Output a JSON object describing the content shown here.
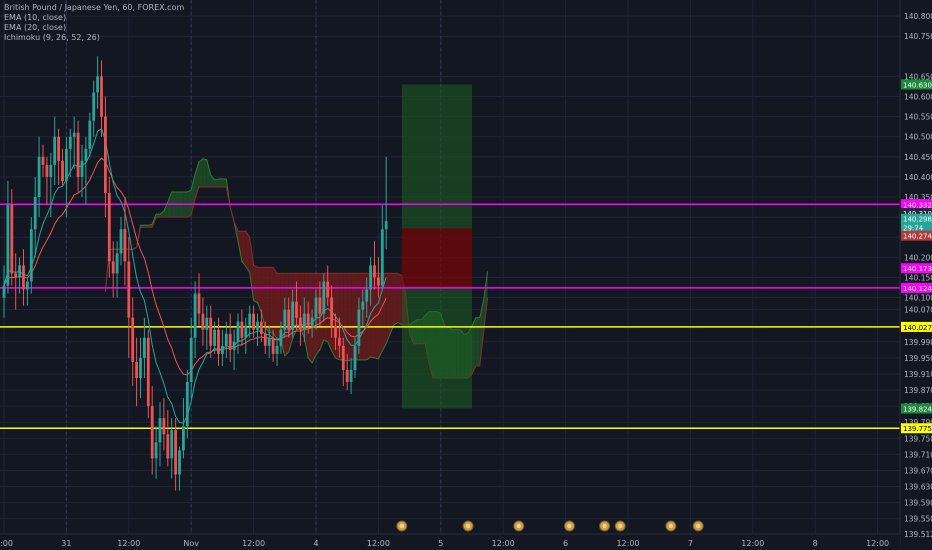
{
  "legend": {
    "symbol": "British Pound / Japanese Yen, 60, FOREX.com",
    "ema10": "EMA (10, close)",
    "ema20": "EMA (20, close)",
    "ichimoku": "Ichimoku (9, 26, 52, 26)"
  },
  "chart_data": {
    "type": "candlestick",
    "title": "British Pound / Japanese Yen, 60, FOREX.com",
    "ylim": [
      139.512,
      140.84
    ],
    "y_ticks": [
      140.8,
      140.75,
      140.65,
      140.6,
      140.55,
      140.5,
      140.45,
      140.4,
      140.35,
      140.3,
      140.25,
      140.2,
      140.15,
      140.1,
      140.07,
      139.99,
      139.95,
      139.91,
      139.87,
      139.83,
      139.79,
      139.75,
      139.71,
      139.67,
      139.63,
      139.59,
      139.55,
      139.512
    ],
    "x_ticks": [
      "2:00",
      "31",
      "12:00",
      "Nov",
      "12:00",
      "4",
      "12:00",
      "5",
      "12:00",
      "6",
      "12:00",
      "7",
      "12:00",
      "8",
      "12:00"
    ],
    "x_tick_index": [
      0,
      16,
      32,
      48,
      64,
      80,
      96,
      112,
      128,
      144,
      160,
      176,
      192,
      208,
      224
    ],
    "candles": [
      [
        140.1,
        140.18,
        140.05,
        140.13
      ],
      [
        140.13,
        140.39,
        140.11,
        140.33
      ],
      [
        140.33,
        140.37,
        140.13,
        140.16
      ],
      [
        140.16,
        140.21,
        140.07,
        140.15
      ],
      [
        140.15,
        140.2,
        140.11,
        140.18
      ],
      [
        140.18,
        140.22,
        140.08,
        140.12
      ],
      [
        140.12,
        140.15,
        140.08,
        140.14
      ],
      [
        140.14,
        140.3,
        140.11,
        140.27
      ],
      [
        140.27,
        140.4,
        140.2,
        140.35
      ],
      [
        140.35,
        140.5,
        140.3,
        140.45
      ],
      [
        140.45,
        140.48,
        140.4,
        140.43
      ],
      [
        140.43,
        140.45,
        140.33,
        140.4
      ],
      [
        140.4,
        140.46,
        140.3,
        140.43
      ],
      [
        140.43,
        140.55,
        140.38,
        140.5
      ],
      [
        140.5,
        140.52,
        140.38,
        140.44
      ],
      [
        140.44,
        140.47,
        140.38,
        140.39
      ],
      [
        140.39,
        140.5,
        140.3,
        140.47
      ],
      [
        140.47,
        140.52,
        140.4,
        140.5
      ],
      [
        140.5,
        140.55,
        140.42,
        140.51
      ],
      [
        140.51,
        140.54,
        140.36,
        140.4
      ],
      [
        140.4,
        140.48,
        140.35,
        140.44
      ],
      [
        140.44,
        140.5,
        140.33,
        140.47
      ],
      [
        140.47,
        140.56,
        140.45,
        140.54
      ],
      [
        140.54,
        140.64,
        140.5,
        140.61
      ],
      [
        140.61,
        140.7,
        140.57,
        140.65
      ],
      [
        140.65,
        140.69,
        140.5,
        140.55
      ],
      [
        140.55,
        140.6,
        140.3,
        140.36
      ],
      [
        140.36,
        140.4,
        140.15,
        140.19
      ],
      [
        140.19,
        140.24,
        140.1,
        140.16
      ],
      [
        140.16,
        140.24,
        140.1,
        140.21
      ],
      [
        140.21,
        140.3,
        140.18,
        140.27
      ],
      [
        140.27,
        140.35,
        140.13,
        140.19
      ],
      [
        140.19,
        140.25,
        139.95,
        140.05
      ],
      [
        140.05,
        140.1,
        139.88,
        139.94
      ],
      [
        139.94,
        140.0,
        139.83,
        139.9
      ],
      [
        139.9,
        140.0,
        139.85,
        139.95
      ],
      [
        139.95,
        140.05,
        139.9,
        140.0
      ],
      [
        140.0,
        140.02,
        139.8,
        139.83
      ],
      [
        139.83,
        139.88,
        139.66,
        139.7
      ],
      [
        139.7,
        139.78,
        139.65,
        139.74
      ],
      [
        139.74,
        139.84,
        139.68,
        139.8
      ],
      [
        139.8,
        139.85,
        139.72,
        139.76
      ],
      [
        139.76,
        139.82,
        139.68,
        139.7
      ],
      [
        139.7,
        139.8,
        139.65,
        139.77
      ],
      [
        139.77,
        139.8,
        139.62,
        139.66
      ],
      [
        139.66,
        139.73,
        139.62,
        139.72
      ],
      [
        139.72,
        139.85,
        139.7,
        139.78
      ],
      [
        139.78,
        139.92,
        139.75,
        139.89
      ],
      [
        139.89,
        140.05,
        139.85,
        140.0
      ],
      [
        140.0,
        140.14,
        139.95,
        140.11
      ],
      [
        140.11,
        140.16,
        140.03,
        140.06
      ],
      [
        140.06,
        140.1,
        139.98,
        140.02
      ],
      [
        140.02,
        140.08,
        139.97,
        140.05
      ],
      [
        140.05,
        140.08,
        139.95,
        139.98
      ],
      [
        139.98,
        140.04,
        139.96,
        140.02
      ],
      [
        140.02,
        140.05,
        139.93,
        139.96
      ],
      [
        139.96,
        140.02,
        139.93,
        139.98
      ],
      [
        139.98,
        140.04,
        139.95,
        140.01
      ],
      [
        140.01,
        140.06,
        139.94,
        139.97
      ],
      [
        139.97,
        140.02,
        139.92,
        139.99
      ],
      [
        139.99,
        140.06,
        139.96,
        140.04
      ],
      [
        140.04,
        140.07,
        139.98,
        140.0
      ],
      [
        140.0,
        140.05,
        139.96,
        140.03
      ],
      [
        140.03,
        140.08,
        140.0,
        140.06
      ],
      [
        140.06,
        140.08,
        140.0,
        140.02
      ],
      [
        140.02,
        140.06,
        139.98,
        140.04
      ],
      [
        140.04,
        140.07,
        139.99,
        140.01
      ],
      [
        140.01,
        140.04,
        139.96,
        139.98
      ],
      [
        139.98,
        140.03,
        139.95,
        140.0
      ],
      [
        140.0,
        140.02,
        139.94,
        139.96
      ],
      [
        139.96,
        140.0,
        139.93,
        139.98
      ],
      [
        139.98,
        140.04,
        139.96,
        140.02
      ],
      [
        140.02,
        140.1,
        140.0,
        140.07
      ],
      [
        140.07,
        140.1,
        140.0,
        140.02
      ],
      [
        140.02,
        140.12,
        140.0,
        140.09
      ],
      [
        140.09,
        140.14,
        140.02,
        140.05
      ],
      [
        140.05,
        140.08,
        139.98,
        140.02
      ],
      [
        140.02,
        140.1,
        139.99,
        140.06
      ],
      [
        140.06,
        140.09,
        140.01,
        140.03
      ],
      [
        140.03,
        140.07,
        140.0,
        140.05
      ],
      [
        140.05,
        140.12,
        140.02,
        140.1
      ],
      [
        140.1,
        140.14,
        140.03,
        140.06
      ],
      [
        140.06,
        140.16,
        140.04,
        140.14
      ],
      [
        140.14,
        140.18,
        140.08,
        140.1
      ],
      [
        140.1,
        140.13,
        140.0,
        140.03
      ],
      [
        140.03,
        140.06,
        139.97,
        140.0
      ],
      [
        140.0,
        140.05,
        139.95,
        139.98
      ],
      [
        139.98,
        140.0,
        139.88,
        139.92
      ],
      [
        139.92,
        139.96,
        139.87,
        139.89
      ],
      [
        139.89,
        139.95,
        139.86,
        139.92
      ],
      [
        139.92,
        140.0,
        139.9,
        139.98
      ],
      [
        139.98,
        140.1,
        139.96,
        140.07
      ],
      [
        140.07,
        140.12,
        140.03,
        140.09
      ],
      [
        140.09,
        140.15,
        140.05,
        140.12
      ],
      [
        140.12,
        140.2,
        140.08,
        140.18
      ],
      [
        140.18,
        140.24,
        140.12,
        140.15
      ],
      [
        140.15,
        140.2,
        140.1,
        140.13
      ],
      [
        140.13,
        140.33,
        140.12,
        140.27
      ],
      [
        140.27,
        140.45,
        140.22,
        140.29
      ]
    ],
    "ema10_label": "EMA (10, close)",
    "ema20_label": "EMA (20, close)",
    "ichimoku_label": "Ichimoku (9, 26, 52, 26)",
    "horizontal_lines": [
      {
        "price": 140.332,
        "color": "#ff00ff"
      },
      {
        "price": 140.124,
        "color": "#ff00ff"
      },
      {
        "price": 140.027,
        "color": "#ffff00"
      },
      {
        "price": 139.775,
        "color": "#ffff00"
      }
    ],
    "position": {
      "entry": 140.124,
      "stop": 140.272,
      "target": 140.63,
      "target_low": 139.824,
      "start_index": 102,
      "end_index": 120
    },
    "price_labels": [
      {
        "price": 140.63,
        "text": "140.630",
        "color": "#1b8a3a"
      },
      {
        "price": 140.332,
        "text": "140.332",
        "color": "#ff00ff"
      },
      {
        "price": 140.31,
        "text": "140.310",
        "color": "#1e2a3a"
      },
      {
        "price": 140.296,
        "text": "140.296",
        "color": "#26a69a"
      },
      {
        "price": 140.274,
        "text": "29:74",
        "color": "#26a69a"
      },
      {
        "price": 140.254,
        "text": "140.274",
        "color": "#b23b3b"
      },
      {
        "price": 140.173,
        "text": "140.173",
        "color": "#ff00ff"
      },
      {
        "price": 140.124,
        "text": "140.124",
        "color": "#ff00ff"
      },
      {
        "price": 140.027,
        "text": "140.027",
        "color": "#ffff00"
      },
      {
        "price": 139.824,
        "text": "139.824",
        "color": "#1b8a3a"
      },
      {
        "price": 139.775,
        "text": "139.775",
        "color": "#ffff00"
      }
    ],
    "event_icon_index": [
      102,
      119,
      132,
      145,
      154,
      158,
      171,
      178
    ]
  },
  "colors": {
    "bg": "#131722",
    "grid": "#1f2536",
    "up": "#26a69a",
    "down": "#ef5350",
    "ema10": "#26a69a",
    "ema20": "#ef5350",
    "cloud_bull": "#1e4d26",
    "cloud_bear": "#6b1c1c",
    "axis_text": "#b2b5be"
  }
}
